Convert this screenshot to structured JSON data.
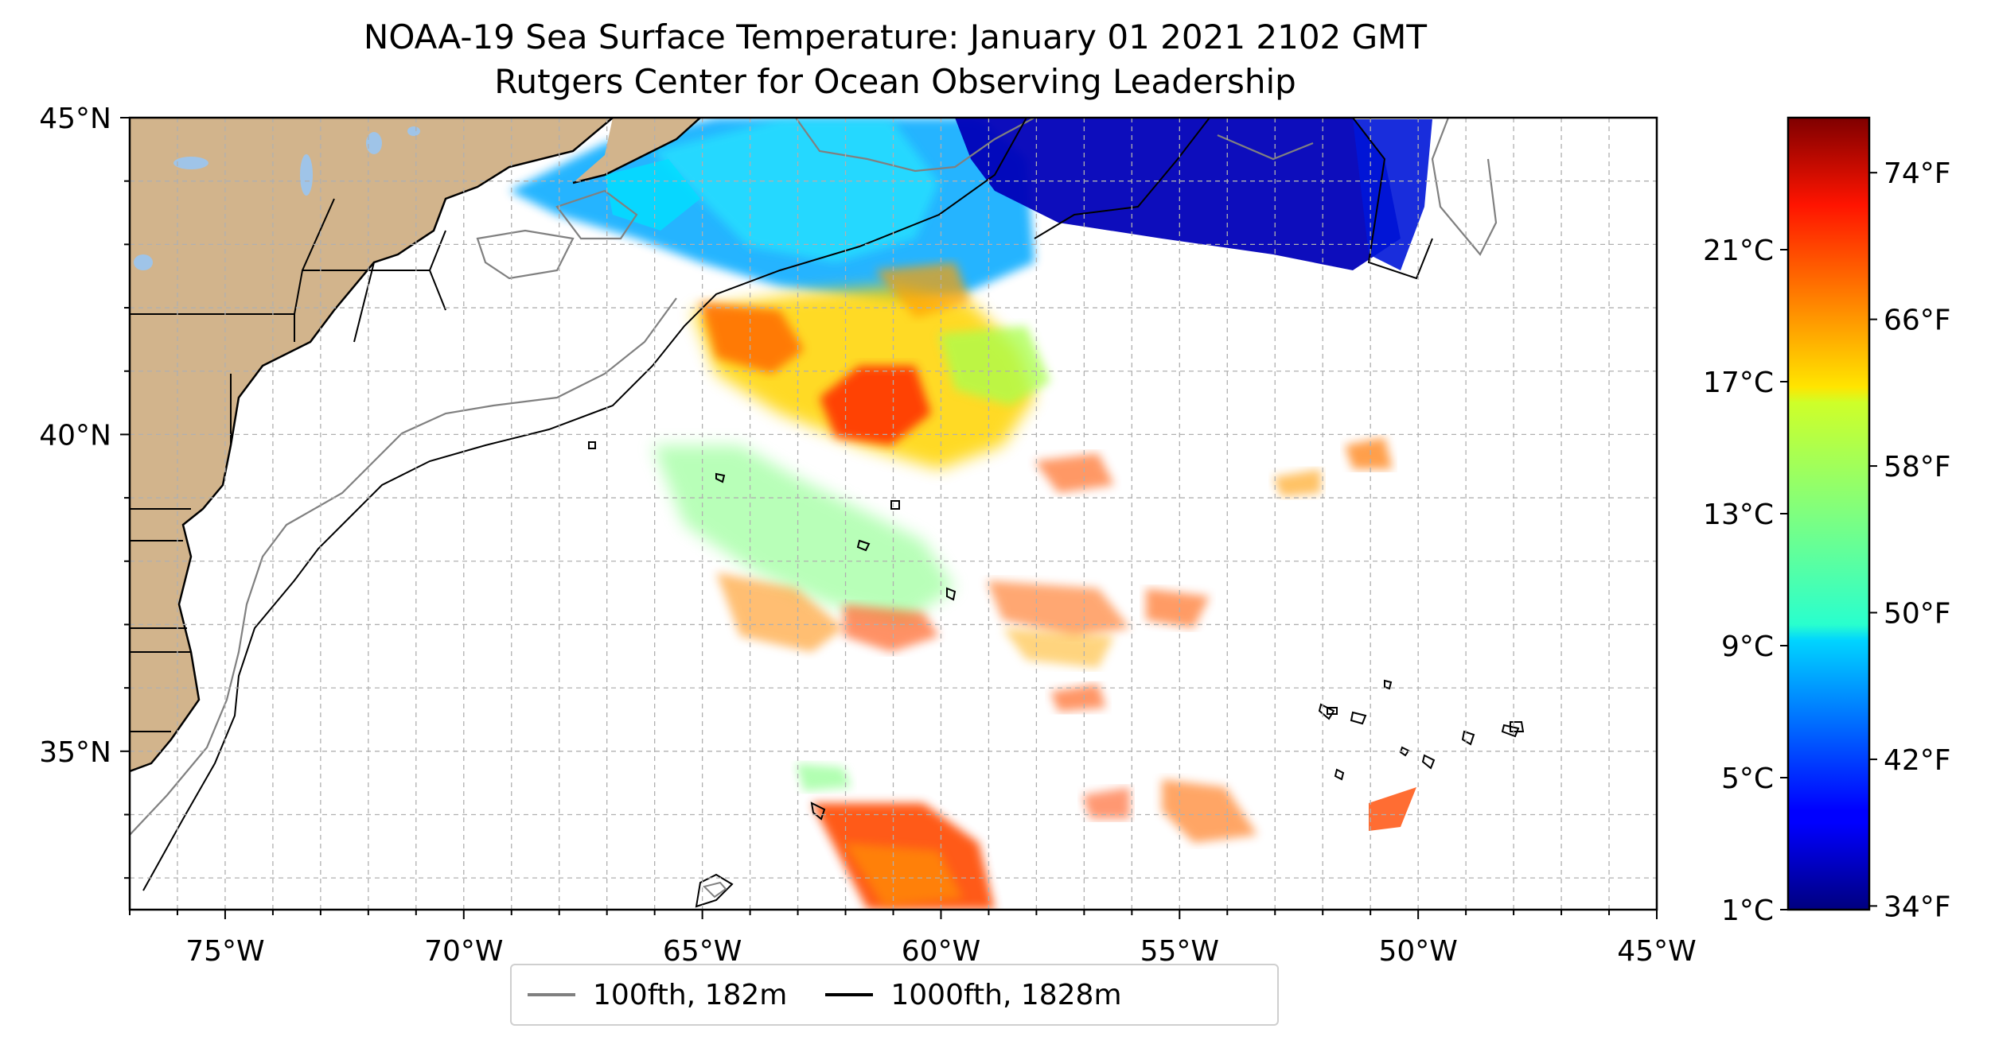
{
  "title": "NOAA-19 Sea Surface Temperature: January 01 2021 2102 GMT",
  "subtitle": "Rutgers Center for Ocean Observing Leadership",
  "map": {
    "lon_range": [
      -77,
      -45
    ],
    "lat_range": [
      32.5,
      45
    ],
    "lon_ticks": [
      {
        "value": -75,
        "label": "75°W"
      },
      {
        "value": -70,
        "label": "70°W"
      },
      {
        "value": -65,
        "label": "65°W"
      },
      {
        "value": -60,
        "label": "60°W"
      },
      {
        "value": -55,
        "label": "55°W"
      },
      {
        "value": -50,
        "label": "50°W"
      },
      {
        "value": -45,
        "label": "45°W"
      }
    ],
    "lat_ticks": [
      {
        "value": 45,
        "label": "45°N"
      },
      {
        "value": 40,
        "label": "40°N"
      },
      {
        "value": 35,
        "label": "35°N"
      }
    ],
    "grid": true,
    "land_color": "#d2b48c",
    "lake_color": "#9fc4e8"
  },
  "legend": {
    "placement": "bottom-center",
    "items": [
      {
        "label": "100fth, 182m",
        "color": "#808080"
      },
      {
        "label": "1000fth, 1828m",
        "color": "#000000"
      }
    ]
  },
  "colorbar": {
    "colormap": "jet",
    "celsius_range": [
      1,
      25
    ],
    "celsius_ticks": [
      {
        "value": 1,
        "label": "1°C"
      },
      {
        "value": 5,
        "label": "5°C"
      },
      {
        "value": 9,
        "label": "9°C"
      },
      {
        "value": 13,
        "label": "13°C"
      },
      {
        "value": 17,
        "label": "17°C"
      },
      {
        "value": 21,
        "label": "21°C"
      }
    ],
    "fahrenheit_ticks": [
      {
        "value": 34,
        "label": "34°F"
      },
      {
        "value": 42,
        "label": "42°F"
      },
      {
        "value": 50,
        "label": "50°F"
      },
      {
        "value": 58,
        "label": "58°F"
      },
      {
        "value": 66,
        "label": "66°F"
      },
      {
        "value": 74,
        "label": "74°F"
      }
    ]
  }
}
